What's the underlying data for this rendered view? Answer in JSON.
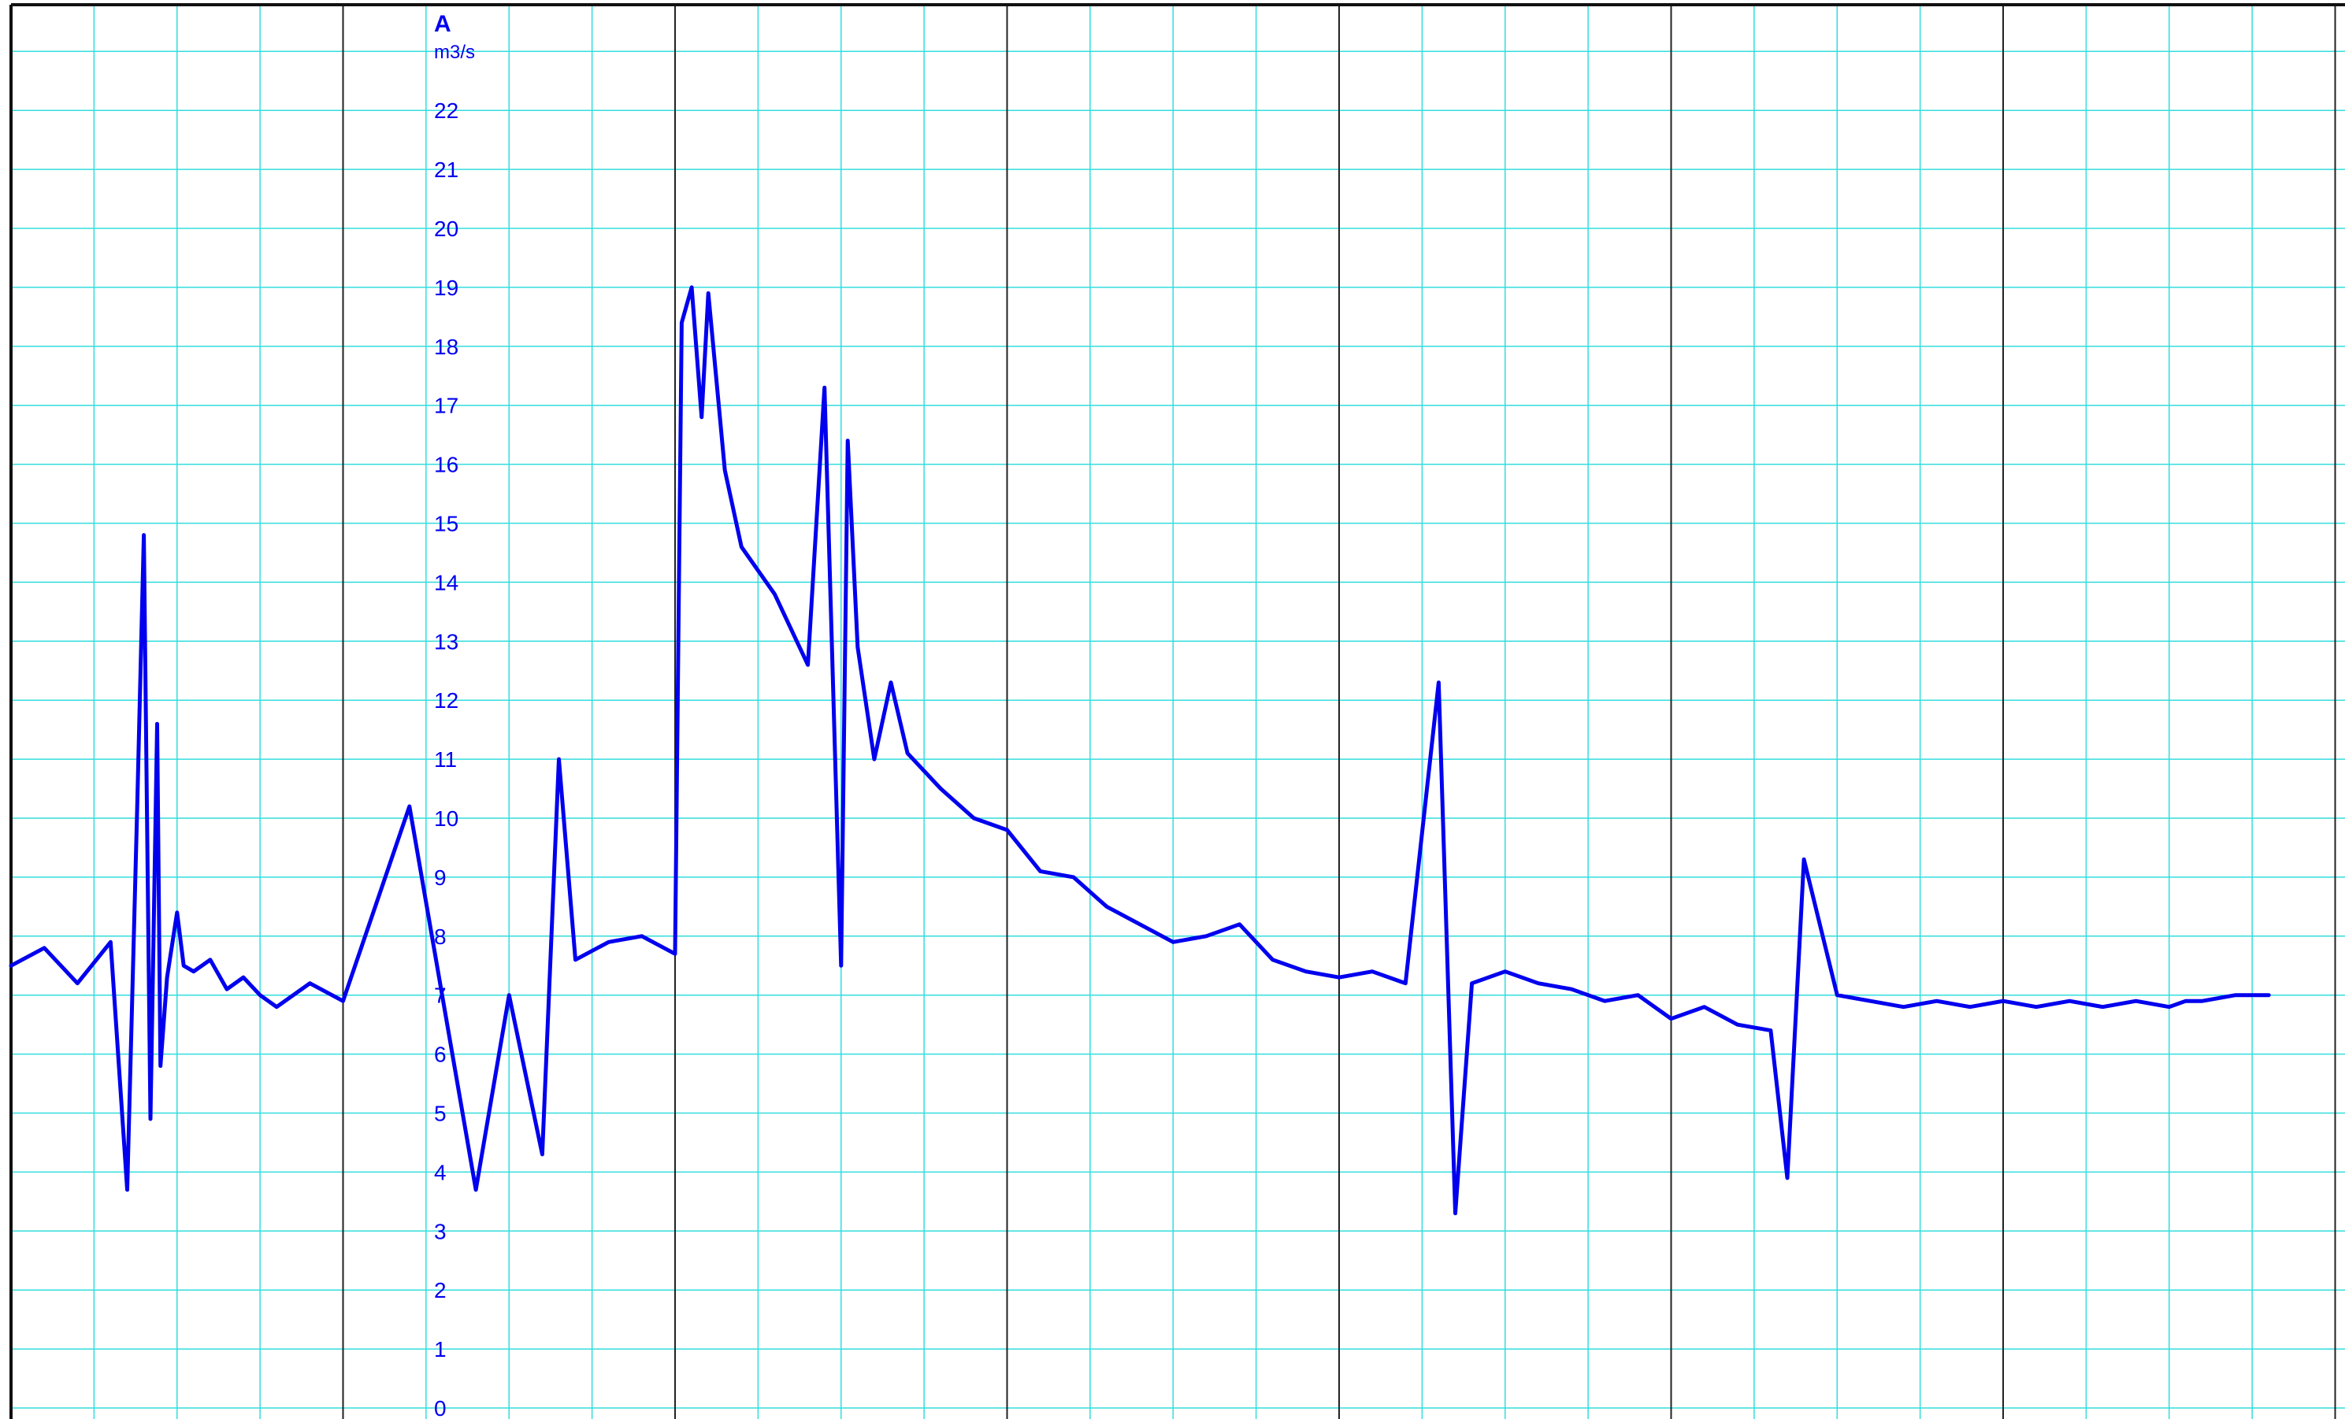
{
  "chart_data": {
    "type": "line",
    "title": "",
    "ylabel": "A",
    "yunit": "m3/s",
    "xlabel": "",
    "ylim": [
      0,
      23.6
    ],
    "yticks": [
      0,
      1,
      2,
      3,
      4,
      5,
      6,
      7,
      8,
      9,
      10,
      11,
      12,
      13,
      14,
      15,
      16,
      17,
      18,
      19,
      20,
      21,
      22
    ],
    "ytick_labels": [
      "0",
      "1",
      "2",
      "3",
      "4",
      "5",
      "6",
      "7",
      "8",
      "9",
      "10",
      "11",
      "12",
      "13",
      "14",
      "15",
      "16",
      "17",
      "18",
      "19",
      "20",
      "21",
      "22"
    ],
    "x_range": [
      0,
      7
    ],
    "x_major_divisions": 7,
    "x_minor_per_major": 4,
    "grid": true,
    "colors": {
      "series": "#0000ee",
      "minor_grid": "#33dddd",
      "major_grid": "#222222",
      "label": "#0000ee"
    },
    "series": [
      {
        "name": "",
        "x": [
          0,
          0.1,
          0.2,
          0.3,
          0.35,
          0.38,
          0.4,
          0.42,
          0.44,
          0.45,
          0.47,
          0.5,
          0.52,
          0.55,
          0.6,
          0.65,
          0.7,
          0.75,
          0.8,
          0.9,
          1.0,
          1.2,
          1.4,
          1.5,
          1.6,
          1.65,
          1.7,
          1.8,
          1.9,
          2.0,
          2.02,
          2.05,
          2.08,
          2.1,
          2.15,
          2.2,
          2.3,
          2.4,
          2.45,
          2.5,
          2.52,
          2.55,
          2.6,
          2.65,
          2.7,
          2.8,
          2.9,
          3.0,
          3.1,
          3.2,
          3.3,
          3.4,
          3.5,
          3.6,
          3.7,
          3.8,
          3.9,
          4.0,
          4.1,
          4.2,
          4.3,
          4.35,
          4.4,
          4.5,
          4.6,
          4.7,
          4.75,
          4.8,
          4.9,
          5.0,
          5.1,
          5.2,
          5.3,
          5.35,
          5.4,
          5.5,
          5.6,
          5.7,
          5.8,
          5.9,
          6.0,
          6.1,
          6.2,
          6.3,
          6.4,
          6.5,
          6.55,
          6.6,
          6.7,
          6.8
        ],
        "y": [
          7.5,
          7.8,
          7.2,
          7.9,
          3.7,
          10.2,
          14.8,
          4.9,
          11.6,
          5.8,
          7.3,
          8.4,
          7.5,
          7.4,
          7.6,
          7.1,
          7.3,
          7.0,
          6.8,
          7.2,
          6.9,
          10.2,
          3.7,
          7.0,
          4.3,
          11.0,
          7.6,
          7.9,
          8.0,
          7.7,
          18.4,
          19.0,
          16.8,
          18.9,
          15.9,
          14.6,
          13.8,
          12.6,
          17.3,
          7.5,
          16.4,
          12.9,
          11.0,
          12.3,
          11.1,
          10.5,
          10.0,
          9.8,
          9.1,
          9.0,
          8.5,
          8.2,
          7.9,
          8.0,
          8.2,
          7.6,
          7.4,
          7.3,
          7.4,
          7.2,
          12.3,
          3.3,
          7.2,
          7.4,
          7.2,
          7.1,
          7.0,
          6.9,
          7.0,
          6.6,
          6.8,
          6.5,
          6.4,
          3.9,
          9.3,
          7.0,
          6.9,
          6.8,
          6.9,
          6.8,
          6.9,
          6.8,
          6.9,
          6.8,
          6.9,
          6.8,
          6.9,
          6.9,
          7.0,
          7.0
        ]
      }
    ]
  }
}
